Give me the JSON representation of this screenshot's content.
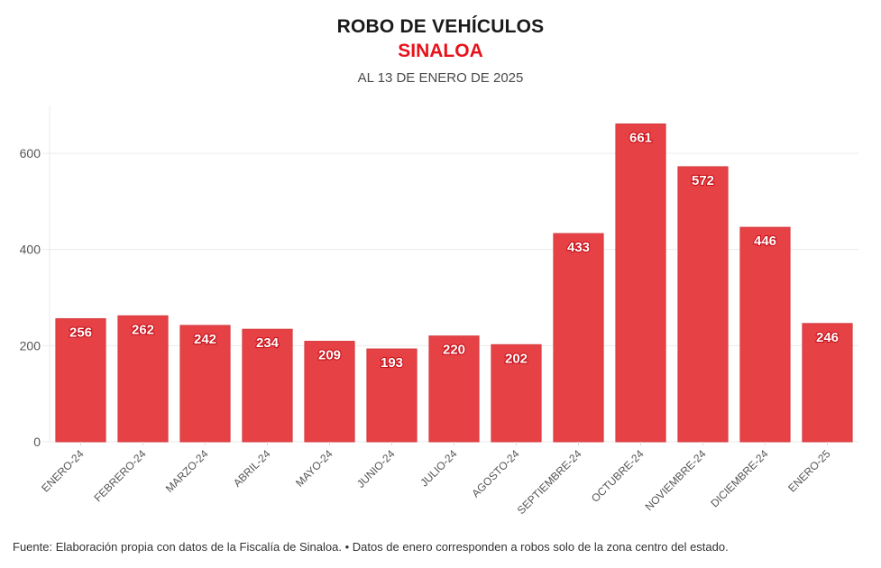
{
  "header": {
    "title": "ROBO DE VEHÍCULOS",
    "subtitle": "SINALOA",
    "date": "AL 13 DE ENERO DE 2025"
  },
  "footer": {
    "source": "Fuente: Elaboración propia con datos de la Fiscalía de Sinaloa. • Datos de enero corresponden a robos solo de la zona centro del estado."
  },
  "colors": {
    "bar": "#e64246",
    "bar_edge": "#d63a3e",
    "title_accent": "#e8121b",
    "grid": "#ebebeb"
  },
  "chart_data": {
    "type": "bar",
    "title": "ROBO DE VEHÍCULOS",
    "subtitle": "SINALOA",
    "xlabel": "",
    "ylabel": "",
    "categories": [
      "ENERO-24",
      "FEBRERO-24",
      "MARZO-24",
      "ABRIL-24",
      "MAYO-24",
      "JUNIO-24",
      "JULIO-24",
      "AGOSTO-24",
      "SEPTIEMBRE-24",
      "OCTUBRE-24",
      "NOVIEMBRE-24",
      "DICIEMBRE-24",
      "ENERO-25"
    ],
    "values": [
      256,
      262,
      242,
      234,
      209,
      193,
      220,
      202,
      433,
      661,
      572,
      446,
      246
    ],
    "ylim": [
      0,
      700
    ],
    "yticks": [
      0,
      200,
      400,
      600
    ],
    "grid": true,
    "legend": "none",
    "data_labels": true
  }
}
